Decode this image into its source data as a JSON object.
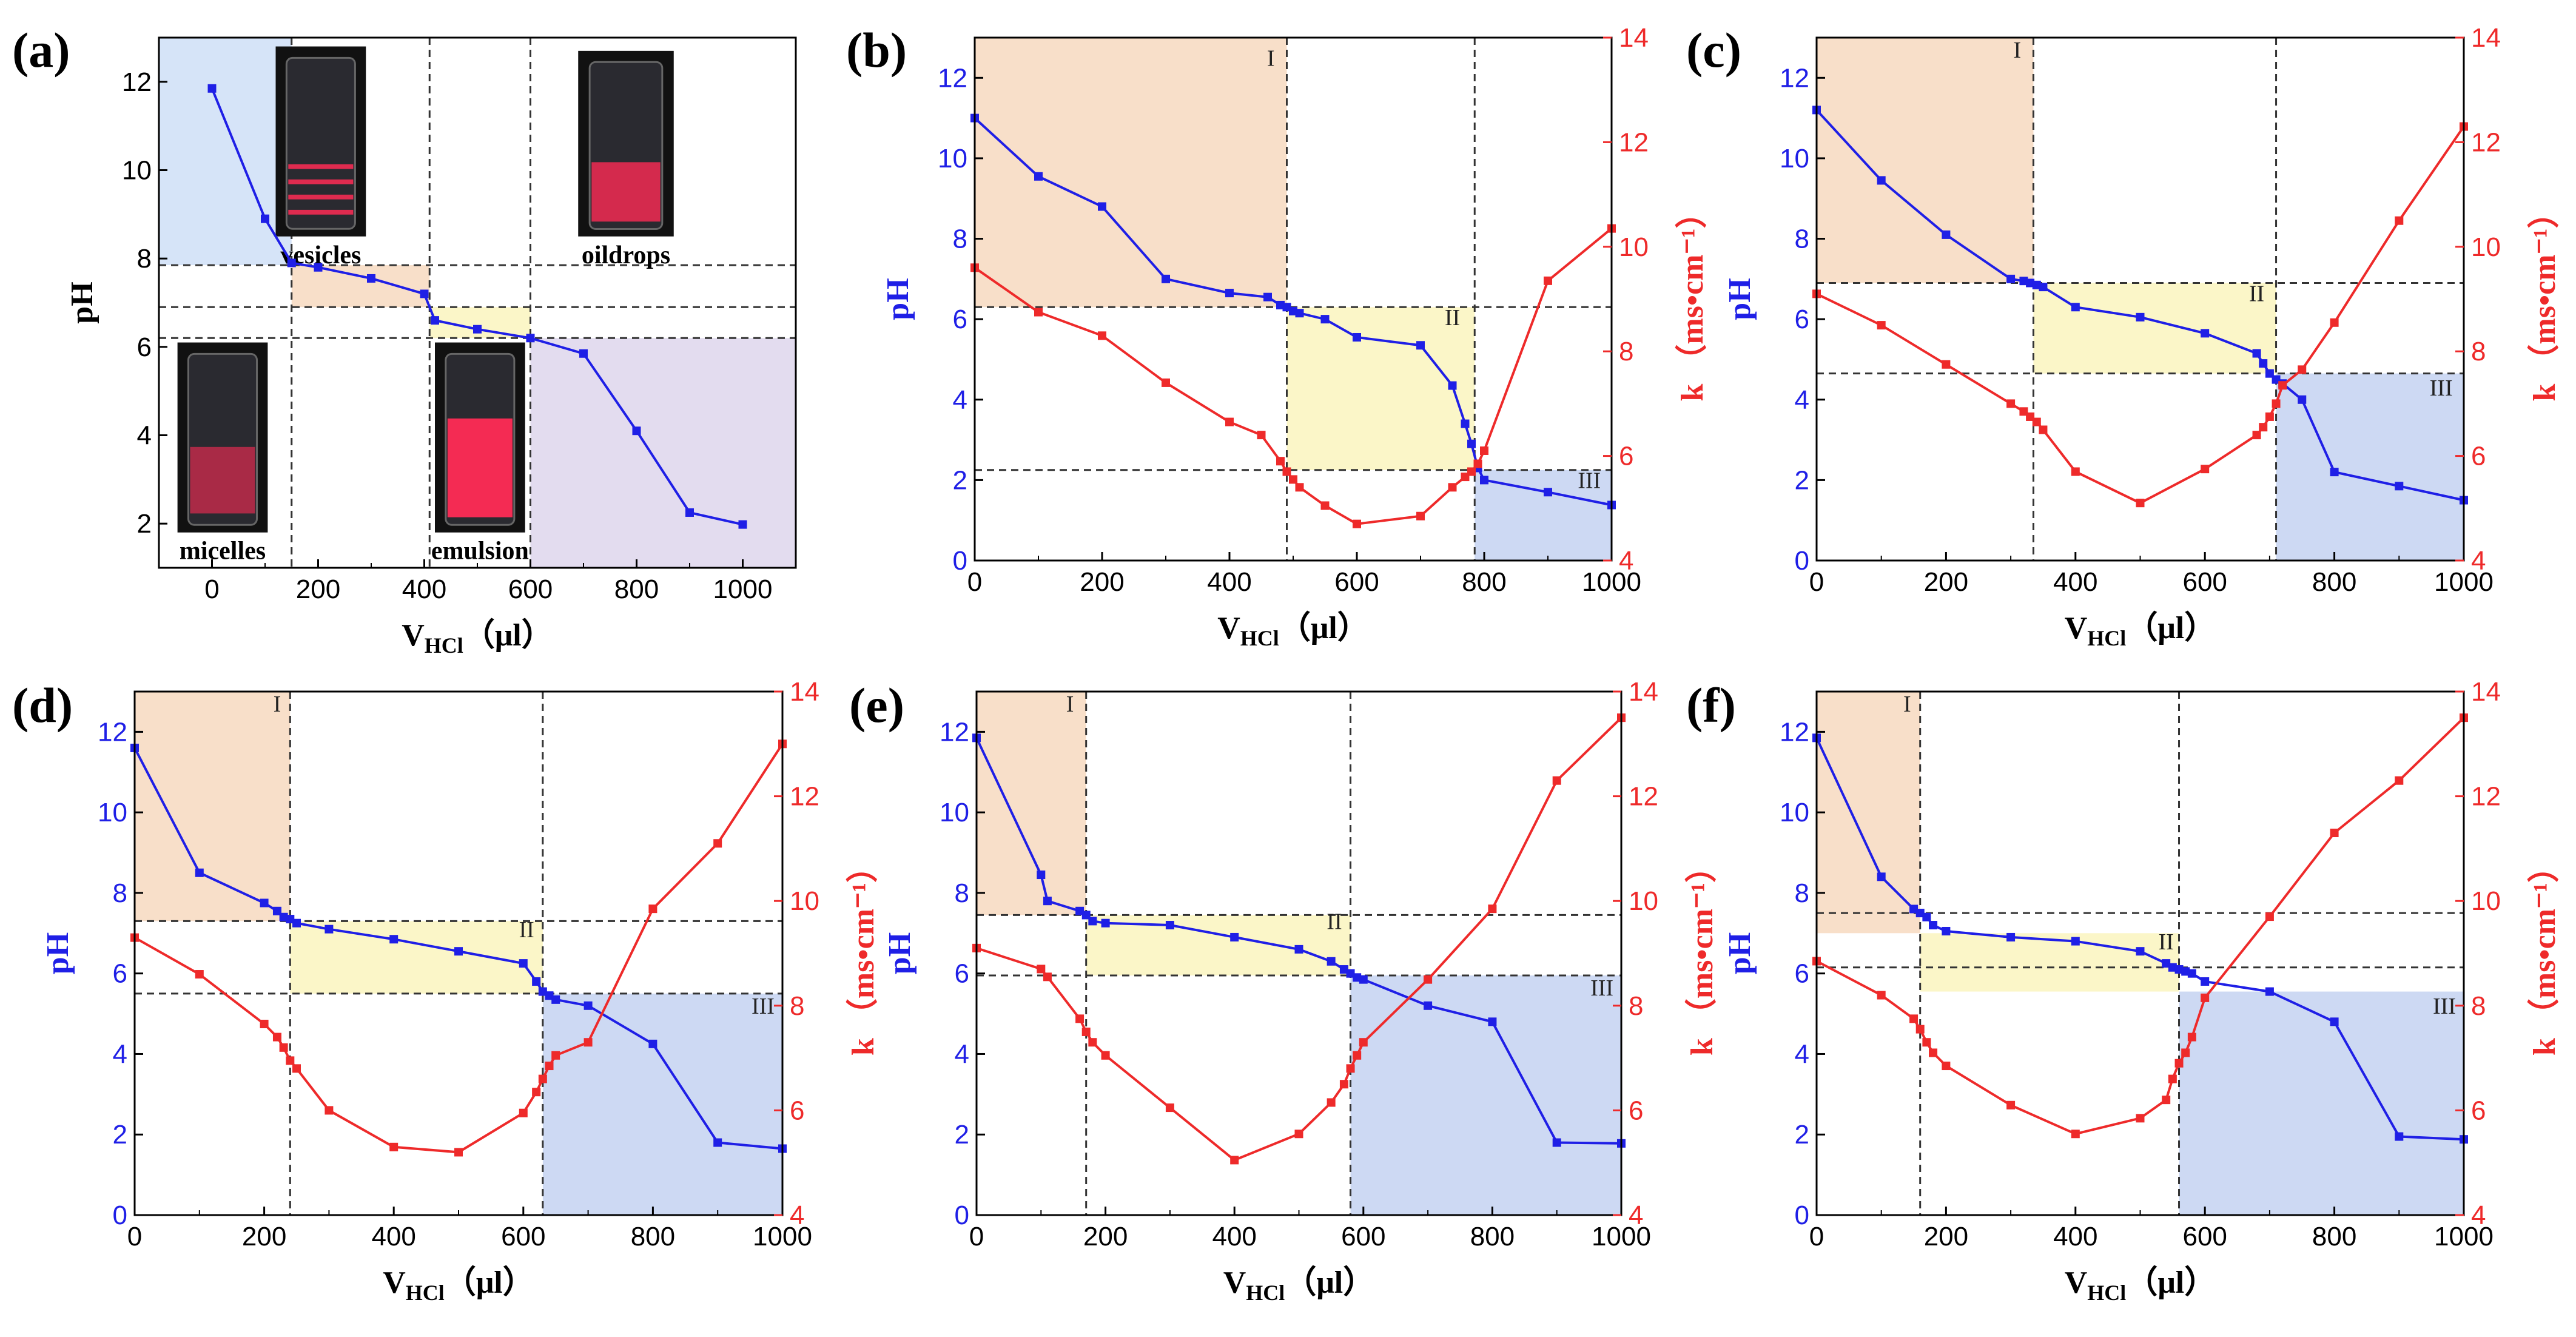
{
  "colors": {
    "ph": "#1f1fe6",
    "k": "#ee2a2a",
    "region_I": "#f8dfc9",
    "region_II": "#fbf6c8",
    "region_III": "#cdd9f3",
    "region_blue_a": "#d6e4f8",
    "region_purple_a": "#e3dcef",
    "photo_bg": "#111111",
    "photo_glow": "#ff2b55"
  },
  "common": {
    "xlabel_main": "V",
    "xlabel_sub": "HCl",
    "xlabel_unit": "（μl）",
    "ylabel_left": "pH",
    "ylabel_right": "k （ms•cm⁻¹）",
    "region_labels": [
      "I",
      "II",
      "III"
    ]
  },
  "chart_data": [
    {
      "panel": "(a)",
      "type": "line",
      "xlim": [
        -100,
        1100
      ],
      "ylim": [
        1,
        13
      ],
      "xticks": [
        0,
        200,
        400,
        600,
        800,
        1000
      ],
      "yticks": [
        2,
        4,
        6,
        8,
        10,
        12
      ],
      "series": [
        {
          "name": "pH",
          "x": [
            0,
            100,
            150,
            200,
            300,
            400,
            420,
            500,
            600,
            700,
            800,
            900,
            1000
          ],
          "y": [
            11.85,
            8.9,
            7.9,
            7.8,
            7.55,
            7.2,
            6.6,
            6.4,
            6.2,
            5.85,
            4.1,
            2.25,
            1.98
          ]
        }
      ],
      "hlines": [
        7.85,
        6.9,
        6.2
      ],
      "vlines": [
        150,
        410,
        600
      ],
      "regions": [
        {
          "x0": -100,
          "x1": 150,
          "y0": 7.85,
          "y1": 13,
          "color": "region_blue_a"
        },
        {
          "x0": 150,
          "x1": 410,
          "y0": 6.9,
          "y1": 7.85,
          "color": "region_I"
        },
        {
          "x0": 410,
          "x1": 600,
          "y0": 6.2,
          "y1": 6.9,
          "color": "region_II"
        },
        {
          "x0": 600,
          "x1": 1100,
          "y0": 1,
          "y1": 6.2,
          "color": "region_purple_a"
        }
      ],
      "photos": [
        {
          "label": "vesicles",
          "x0": 120,
          "x1": 290,
          "y0": 8.5,
          "y1": 12.8,
          "style": "bands"
        },
        {
          "label": "oildrops",
          "x0": 690,
          "x1": 870,
          "y0": 8.5,
          "y1": 12.7,
          "style": "bottom"
        },
        {
          "label": "micelles",
          "x0": -65,
          "x1": 105,
          "y0": 1.8,
          "y1": 6.1,
          "style": "mid"
        },
        {
          "label": "emulsion",
          "x0": 420,
          "x1": 590,
          "y0": 1.8,
          "y1": 6.1,
          "style": "full"
        }
      ]
    },
    {
      "panel": "(b)",
      "type": "line",
      "xlim": [
        0,
        1000
      ],
      "ylim": [
        0,
        13
      ],
      "y2lim": [
        4,
        14
      ],
      "xticks": [
        0,
        200,
        400,
        600,
        800,
        1000
      ],
      "yticks": [
        0,
        2,
        4,
        6,
        8,
        10,
        12
      ],
      "y2ticks": [
        4,
        6,
        8,
        10,
        12,
        14
      ],
      "series": [
        {
          "name": "pH",
          "axis": "left",
          "x": [
            0,
            100,
            200,
            300,
            400,
            460,
            480,
            490,
            500,
            510,
            550,
            600,
            700,
            750,
            770,
            780,
            790,
            800,
            900,
            1000
          ],
          "y": [
            11.0,
            9.55,
            8.8,
            7.0,
            6.65,
            6.55,
            6.35,
            6.3,
            6.2,
            6.15,
            6.0,
            5.55,
            5.35,
            4.35,
            3.4,
            2.9,
            2.3,
            2.0,
            1.7,
            1.38
          ]
        },
        {
          "name": "k",
          "axis": "right",
          "x": [
            0,
            100,
            200,
            300,
            400,
            450,
            480,
            490,
            500,
            510,
            550,
            600,
            700,
            750,
            770,
            780,
            790,
            800,
            900,
            1000
          ],
          "y": [
            9.6,
            8.75,
            8.3,
            7.4,
            6.65,
            6.4,
            5.9,
            5.7,
            5.55,
            5.4,
            5.05,
            4.7,
            4.85,
            5.4,
            5.6,
            5.7,
            5.85,
            6.1,
            9.35,
            10.35
          ]
        }
      ],
      "hlines": [
        6.3,
        2.25
      ],
      "vlines": [
        490,
        785
      ],
      "regions": [
        {
          "x0": 0,
          "x1": 490,
          "y0": 6.3,
          "y1": 13,
          "color": "region_I",
          "label": 0,
          "lx": 465,
          "ly": 12.3
        },
        {
          "x0": 490,
          "x1": 785,
          "y0": 2.25,
          "y1": 6.3,
          "color": "region_II",
          "label": 1,
          "lx": 750,
          "ly": 5.85
        },
        {
          "x0": 785,
          "x1": 1000,
          "y0": 0,
          "y1": 2.25,
          "color": "region_III",
          "label": 2,
          "lx": 965,
          "ly": 1.8
        }
      ]
    },
    {
      "panel": "(c)",
      "type": "line",
      "xlim": [
        0,
        1000
      ],
      "ylim": [
        0,
        13
      ],
      "y2lim": [
        4,
        14
      ],
      "xticks": [
        0,
        200,
        400,
        600,
        800,
        1000
      ],
      "yticks": [
        0,
        2,
        4,
        6,
        8,
        10,
        12
      ],
      "y2ticks": [
        4,
        6,
        8,
        10,
        12,
        14
      ],
      "series": [
        {
          "name": "pH",
          "axis": "left",
          "x": [
            0,
            100,
            200,
            300,
            320,
            330,
            340,
            350,
            400,
            500,
            600,
            680,
            690,
            700,
            710,
            720,
            750,
            800,
            900,
            1000
          ],
          "y": [
            11.2,
            9.45,
            8.1,
            7.0,
            6.95,
            6.9,
            6.85,
            6.8,
            6.3,
            6.05,
            5.65,
            5.15,
            4.9,
            4.65,
            4.5,
            4.4,
            4.0,
            2.2,
            1.85,
            1.5
          ]
        },
        {
          "name": "k",
          "axis": "right",
          "x": [
            0,
            100,
            200,
            300,
            320,
            330,
            340,
            350,
            400,
            500,
            600,
            680,
            690,
            700,
            710,
            720,
            750,
            800,
            900,
            1000
          ],
          "y": [
            9.1,
            8.5,
            7.75,
            7.0,
            6.85,
            6.75,
            6.65,
            6.5,
            5.7,
            5.1,
            5.75,
            6.4,
            6.55,
            6.75,
            7.0,
            7.35,
            7.65,
            8.55,
            10.5,
            12.3
          ]
        }
      ],
      "hlines": [
        6.9,
        4.65
      ],
      "vlines": [
        335,
        710
      ],
      "regions": [
        {
          "x0": 0,
          "x1": 335,
          "y0": 6.9,
          "y1": 13,
          "color": "region_I",
          "label": 0,
          "lx": 310,
          "ly": 12.5
        },
        {
          "x0": 335,
          "x1": 710,
          "y0": 4.65,
          "y1": 6.9,
          "color": "region_II",
          "label": 1,
          "lx": 680,
          "ly": 6.45
        },
        {
          "x0": 710,
          "x1": 1000,
          "y0": 0,
          "y1": 4.65,
          "color": "region_III",
          "label": 2,
          "lx": 965,
          "ly": 4.1
        }
      ]
    },
    {
      "panel": "(d)",
      "type": "line",
      "xlim": [
        0,
        1000
      ],
      "ylim": [
        0,
        13
      ],
      "y2lim": [
        4,
        14
      ],
      "xticks": [
        0,
        200,
        400,
        600,
        800,
        1000
      ],
      "yticks": [
        0,
        2,
        4,
        6,
        8,
        10,
        12
      ],
      "y2ticks": [
        4,
        6,
        8,
        10,
        12,
        14
      ],
      "series": [
        {
          "name": "pH",
          "axis": "left",
          "x": [
            0,
            100,
            200,
            220,
            230,
            240,
            250,
            300,
            400,
            500,
            600,
            620,
            630,
            640,
            650,
            700,
            800,
            900,
            1000
          ],
          "y": [
            11.6,
            8.5,
            7.75,
            7.55,
            7.4,
            7.35,
            7.25,
            7.1,
            6.85,
            6.55,
            6.25,
            5.8,
            5.55,
            5.45,
            5.35,
            5.2,
            4.25,
            1.8,
            1.65
          ]
        },
        {
          "name": "k",
          "axis": "right",
          "x": [
            0,
            100,
            200,
            220,
            230,
            240,
            250,
            300,
            400,
            500,
            600,
            620,
            630,
            640,
            650,
            700,
            800,
            900,
            1000
          ],
          "y": [
            9.3,
            8.6,
            7.65,
            7.4,
            7.2,
            6.95,
            6.8,
            6.0,
            5.3,
            5.2,
            5.95,
            6.35,
            6.6,
            6.85,
            7.05,
            7.3,
            9.85,
            11.1,
            13.0
          ]
        }
      ],
      "hlines": [
        7.3,
        5.5
      ],
      "vlines": [
        240,
        630
      ],
      "regions": [
        {
          "x0": 0,
          "x1": 240,
          "y0": 7.3,
          "y1": 13,
          "color": "region_I",
          "label": 0,
          "lx": 220,
          "ly": 12.5
        },
        {
          "x0": 240,
          "x1": 630,
          "y0": 5.5,
          "y1": 7.3,
          "color": "region_II",
          "label": 1,
          "lx": 605,
          "ly": 6.9
        },
        {
          "x0": 630,
          "x1": 1000,
          "y0": 0,
          "y1": 5.5,
          "color": "region_III",
          "label": 2,
          "lx": 970,
          "ly": 5.0
        }
      ]
    },
    {
      "panel": "(e)",
      "type": "line",
      "xlim": [
        0,
        1000
      ],
      "ylim": [
        0,
        13
      ],
      "y2lim": [
        4,
        14
      ],
      "xticks": [
        0,
        200,
        400,
        600,
        800,
        1000
      ],
      "yticks": [
        0,
        2,
        4,
        6,
        8,
        10,
        12
      ],
      "y2ticks": [
        4,
        6,
        8,
        10,
        12,
        14
      ],
      "series": [
        {
          "name": "pH",
          "axis": "left",
          "x": [
            0,
            100,
            110,
            160,
            170,
            180,
            200,
            300,
            400,
            500,
            550,
            570,
            580,
            590,
            600,
            700,
            800,
            900,
            1000
          ],
          "y": [
            11.85,
            8.45,
            7.8,
            7.55,
            7.45,
            7.3,
            7.25,
            7.2,
            6.9,
            6.6,
            6.3,
            6.1,
            6.0,
            5.9,
            5.85,
            5.2,
            4.8,
            1.8,
            1.78
          ]
        },
        {
          "name": "k",
          "axis": "right",
          "x": [
            0,
            100,
            110,
            160,
            170,
            180,
            200,
            300,
            400,
            500,
            550,
            570,
            580,
            590,
            600,
            700,
            800,
            900,
            1000
          ],
          "y": [
            9.1,
            8.7,
            8.55,
            7.75,
            7.5,
            7.3,
            7.05,
            6.05,
            5.05,
            5.55,
            6.15,
            6.5,
            6.8,
            7.05,
            7.3,
            8.5,
            9.85,
            12.3,
            13.5
          ]
        }
      ],
      "hlines": [
        7.45,
        5.95
      ],
      "vlines": [
        170,
        580
      ],
      "regions": [
        {
          "x0": 0,
          "x1": 170,
          "y0": 7.45,
          "y1": 13,
          "color": "region_I",
          "label": 0,
          "lx": 145,
          "ly": 12.5
        },
        {
          "x0": 170,
          "x1": 580,
          "y0": 5.95,
          "y1": 7.45,
          "color": "region_II",
          "label": 1,
          "lx": 555,
          "ly": 7.1
        },
        {
          "x0": 580,
          "x1": 1000,
          "y0": 0,
          "y1": 5.95,
          "color": "region_III",
          "label": 2,
          "lx": 970,
          "ly": 5.45
        }
      ]
    },
    {
      "panel": "(f)",
      "type": "line",
      "xlim": [
        0,
        1000
      ],
      "ylim": [
        0,
        13
      ],
      "y2lim": [
        4,
        14
      ],
      "xticks": [
        0,
        200,
        400,
        600,
        800,
        1000
      ],
      "yticks": [
        0,
        2,
        4,
        6,
        8,
        10,
        12
      ],
      "y2ticks": [
        4,
        6,
        8,
        10,
        12,
        14
      ],
      "series": [
        {
          "name": "pH",
          "axis": "left",
          "x": [
            0,
            100,
            150,
            160,
            170,
            180,
            200,
            300,
            400,
            500,
            540,
            550,
            560,
            570,
            580,
            600,
            700,
            800,
            900,
            1000
          ],
          "y": [
            11.85,
            8.4,
            7.6,
            7.5,
            7.4,
            7.2,
            7.05,
            6.9,
            6.8,
            6.55,
            6.25,
            6.15,
            6.1,
            6.05,
            6.0,
            5.8,
            5.55,
            4.8,
            1.95,
            1.88
          ]
        },
        {
          "name": "k",
          "axis": "right",
          "x": [
            0,
            100,
            150,
            160,
            170,
            180,
            200,
            300,
            400,
            500,
            540,
            550,
            560,
            570,
            580,
            600,
            700,
            800,
            900,
            1000
          ],
          "y": [
            8.85,
            8.2,
            7.75,
            7.55,
            7.3,
            7.1,
            6.85,
            6.1,
            5.55,
            5.85,
            6.2,
            6.6,
            6.9,
            7.1,
            7.4,
            8.15,
            9.7,
            11.3,
            12.3,
            13.5
          ]
        }
      ],
      "hlines": [
        7.5,
        6.15
      ],
      "vlines": [
        160,
        560
      ],
      "regions": [
        {
          "x0": 0,
          "x1": 160,
          "y0": 7.0,
          "y1": 13,
          "color": "region_I",
          "label": 0,
          "lx": 140,
          "ly": 12.5
        },
        {
          "x0": 160,
          "x1": 560,
          "y0": 5.55,
          "y1": 7.0,
          "color": "region_II",
          "label": 1,
          "lx": 540,
          "ly": 6.6
        },
        {
          "x0": 560,
          "x1": 1000,
          "y0": 0,
          "y1": 5.55,
          "color": "region_III",
          "label": 2,
          "lx": 970,
          "ly": 5.0
        }
      ]
    }
  ]
}
